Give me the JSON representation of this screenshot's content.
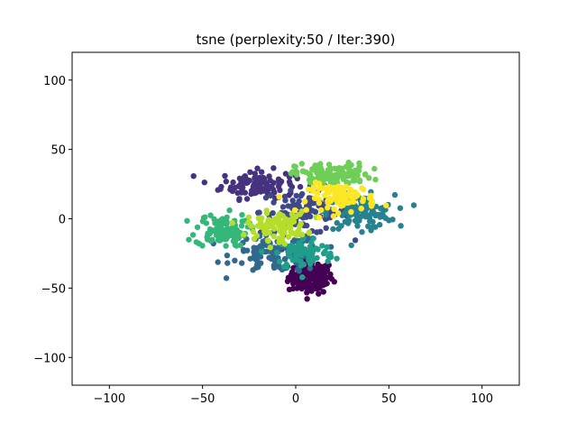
{
  "chart_data": {
    "type": "scatter",
    "title": "tsne (perplexity:50 / Iter:390)",
    "xlabel": "",
    "ylabel": "",
    "xlim": [
      -120,
      120
    ],
    "ylim": [
      -120,
      120
    ],
    "xticks": [
      -100,
      -50,
      0,
      50,
      100
    ],
    "yticks": [
      -100,
      -50,
      0,
      50,
      100
    ],
    "xtick_labels": [
      "−100",
      "−50",
      "0",
      "50",
      "100"
    ],
    "ytick_labels": [
      "−100",
      "−50",
      "0",
      "50",
      "100"
    ],
    "grid": false,
    "legend": "none",
    "clusters": [
      {
        "color": "#440154",
        "center": [
          8,
          -42
        ],
        "spread": [
          6,
          6
        ],
        "count": 140
      },
      {
        "color": "#46327e",
        "center": [
          -20,
          25
        ],
        "spread": [
          10,
          5
        ],
        "count": 120
      },
      {
        "color": "#3e4989",
        "center": [
          5,
          5
        ],
        "spread": [
          12,
          8
        ],
        "count": 110
      },
      {
        "color": "#31688e",
        "center": [
          -10,
          -25
        ],
        "spread": [
          12,
          7
        ],
        "count": 120
      },
      {
        "color": "#26828e",
        "center": [
          35,
          5
        ],
        "spread": [
          9,
          6
        ],
        "count": 120
      },
      {
        "color": "#1f9e89",
        "center": [
          5,
          -25
        ],
        "spread": [
          8,
          6
        ],
        "count": 80
      },
      {
        "color": "#35b779",
        "center": [
          -40,
          -8
        ],
        "spread": [
          7,
          6
        ],
        "count": 100
      },
      {
        "color": "#6ece58",
        "center": [
          20,
          32
        ],
        "spread": [
          10,
          4
        ],
        "count": 120
      },
      {
        "color": "#b5de2b",
        "center": [
          -10,
          -5
        ],
        "spread": [
          8,
          5
        ],
        "count": 100
      },
      {
        "color": "#fde725",
        "center": [
          25,
          15
        ],
        "spread": [
          9,
          5
        ],
        "count": 90
      }
    ]
  }
}
